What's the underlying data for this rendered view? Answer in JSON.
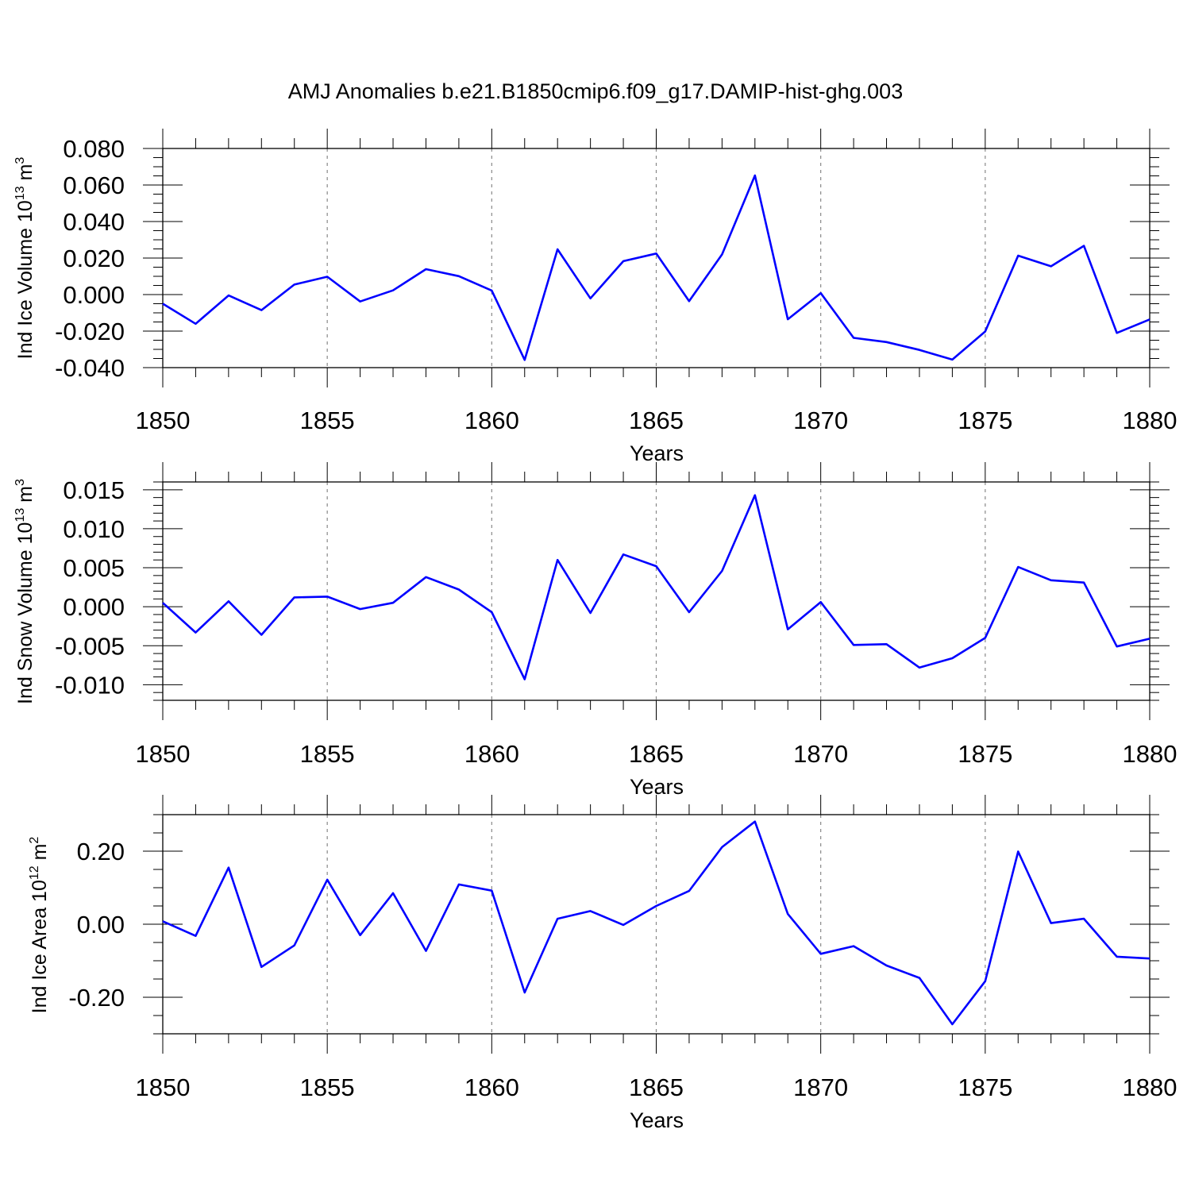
{
  "title": "AMJ Anomalies b.e21.B1850cmip6.f09_g17.DAMIP-hist-ghg.003",
  "colors": {
    "series": "#0000ff",
    "axis": "#000000",
    "grid": "#888888"
  },
  "chart_data": [
    {
      "type": "line",
      "ylabel": {
        "text": "Ind Ice Volume 10",
        "sup1": "13",
        "mid": " m",
        "sup2": "3"
      },
      "xlabel": "Years",
      "xlim": [
        1850,
        1880
      ],
      "ylim": [
        -0.04,
        0.08
      ],
      "x_ticks": [
        "1850",
        "1855",
        "1860",
        "1865",
        "1870",
        "1875",
        "1880"
      ],
      "y_ticks": [
        {
          "value": 0.08,
          "label": "0.080"
        },
        {
          "value": 0.06,
          "label": "0.060"
        },
        {
          "value": 0.04,
          "label": "0.040"
        },
        {
          "value": 0.02,
          "label": "0.020"
        },
        {
          "value": 0.0,
          "label": "0.000"
        },
        {
          "value": -0.02,
          "label": "-0.020"
        },
        {
          "value": -0.04,
          "label": "-0.040"
        }
      ],
      "y_minor_step": 0.005,
      "grid": "vertical dashed at major x ticks",
      "x": [
        1850,
        1851,
        1852,
        1853,
        1854,
        1855,
        1856,
        1857,
        1858,
        1859,
        1860,
        1861,
        1862,
        1863,
        1864,
        1865,
        1866,
        1867,
        1868,
        1869,
        1870,
        1871,
        1872,
        1873,
        1874,
        1875,
        1876,
        1877,
        1878,
        1879,
        1880
      ],
      "values": [
        -0.005,
        -0.016,
        -0.0005,
        -0.0085,
        0.0055,
        0.0098,
        -0.0038,
        0.0023,
        0.0139,
        0.0101,
        0.0022,
        -0.0358,
        0.0248,
        -0.0021,
        0.0183,
        0.0225,
        -0.0036,
        0.022,
        0.0652,
        -0.0135,
        0.0008,
        -0.0237,
        -0.026,
        -0.0303,
        -0.0356,
        -0.0202,
        0.0213,
        0.0155,
        0.0267,
        -0.021,
        -0.0136
      ]
    },
    {
      "type": "line",
      "ylabel": {
        "text": "Ind Snow Volume 10",
        "sup1": "13",
        "mid": " m",
        "sup2": "3"
      },
      "xlabel": "Years",
      "xlim": [
        1850,
        1880
      ],
      "ylim": [
        -0.012,
        0.016
      ],
      "x_ticks": [
        "1850",
        "1855",
        "1860",
        "1865",
        "1870",
        "1875",
        "1880"
      ],
      "y_ticks": [
        {
          "value": 0.015,
          "label": "0.015"
        },
        {
          "value": 0.01,
          "label": "0.010"
        },
        {
          "value": 0.005,
          "label": "0.005"
        },
        {
          "value": 0.0,
          "label": "0.000"
        },
        {
          "value": -0.005,
          "label": "-0.005"
        },
        {
          "value": -0.01,
          "label": "-0.010"
        }
      ],
      "y_minor_step": 0.001,
      "grid": "vertical dashed at major x ticks",
      "x": [
        1850,
        1851,
        1852,
        1853,
        1854,
        1855,
        1856,
        1857,
        1858,
        1859,
        1860,
        1861,
        1862,
        1863,
        1864,
        1865,
        1866,
        1867,
        1868,
        1869,
        1870,
        1871,
        1872,
        1873,
        1874,
        1875,
        1876,
        1877,
        1878,
        1879,
        1880
      ],
      "values": [
        0.0005,
        -0.0033,
        0.0007,
        -0.0036,
        0.0012,
        0.0013,
        -0.0003,
        0.0005,
        0.0038,
        0.0022,
        -0.0007,
        -0.0093,
        0.006,
        -0.0008,
        0.0067,
        0.0052,
        -0.0007,
        0.0046,
        0.0143,
        -0.0029,
        0.0006,
        -0.0049,
        -0.0048,
        -0.0078,
        -0.0066,
        -0.004,
        0.0051,
        0.0034,
        0.0031,
        -0.0051,
        -0.0041
      ]
    },
    {
      "type": "line",
      "ylabel": {
        "text": "Ind Ice Area 10",
        "sup1": "12",
        "mid": " m",
        "sup2": "2"
      },
      "xlabel": "Years",
      "xlim": [
        1850,
        1880
      ],
      "ylim": [
        -0.3,
        0.3
      ],
      "x_ticks": [
        "1850",
        "1855",
        "1860",
        "1865",
        "1870",
        "1875",
        "1880"
      ],
      "y_ticks": [
        {
          "value": 0.2,
          "label": "0.20"
        },
        {
          "value": 0.0,
          "label": "0.00"
        },
        {
          "value": -0.2,
          "label": "-0.20"
        }
      ],
      "y_minor_step": 0.05,
      "grid": "vertical dashed at major x ticks",
      "x": [
        1850,
        1851,
        1852,
        1853,
        1854,
        1855,
        1856,
        1857,
        1858,
        1859,
        1860,
        1861,
        1862,
        1863,
        1864,
        1865,
        1866,
        1867,
        1868,
        1869,
        1870,
        1871,
        1872,
        1873,
        1874,
        1875,
        1876,
        1877,
        1878,
        1879,
        1880
      ],
      "values": [
        0.008,
        -0.032,
        0.155,
        -0.117,
        -0.058,
        0.122,
        -0.03,
        0.085,
        -0.073,
        0.109,
        0.092,
        -0.187,
        0.015,
        0.036,
        -0.002,
        0.05,
        0.091,
        0.211,
        0.281,
        0.028,
        -0.081,
        -0.06,
        -0.113,
        -0.147,
        -0.274,
        -0.156,
        0.199,
        0.003,
        0.015,
        -0.089,
        -0.094
      ]
    }
  ]
}
